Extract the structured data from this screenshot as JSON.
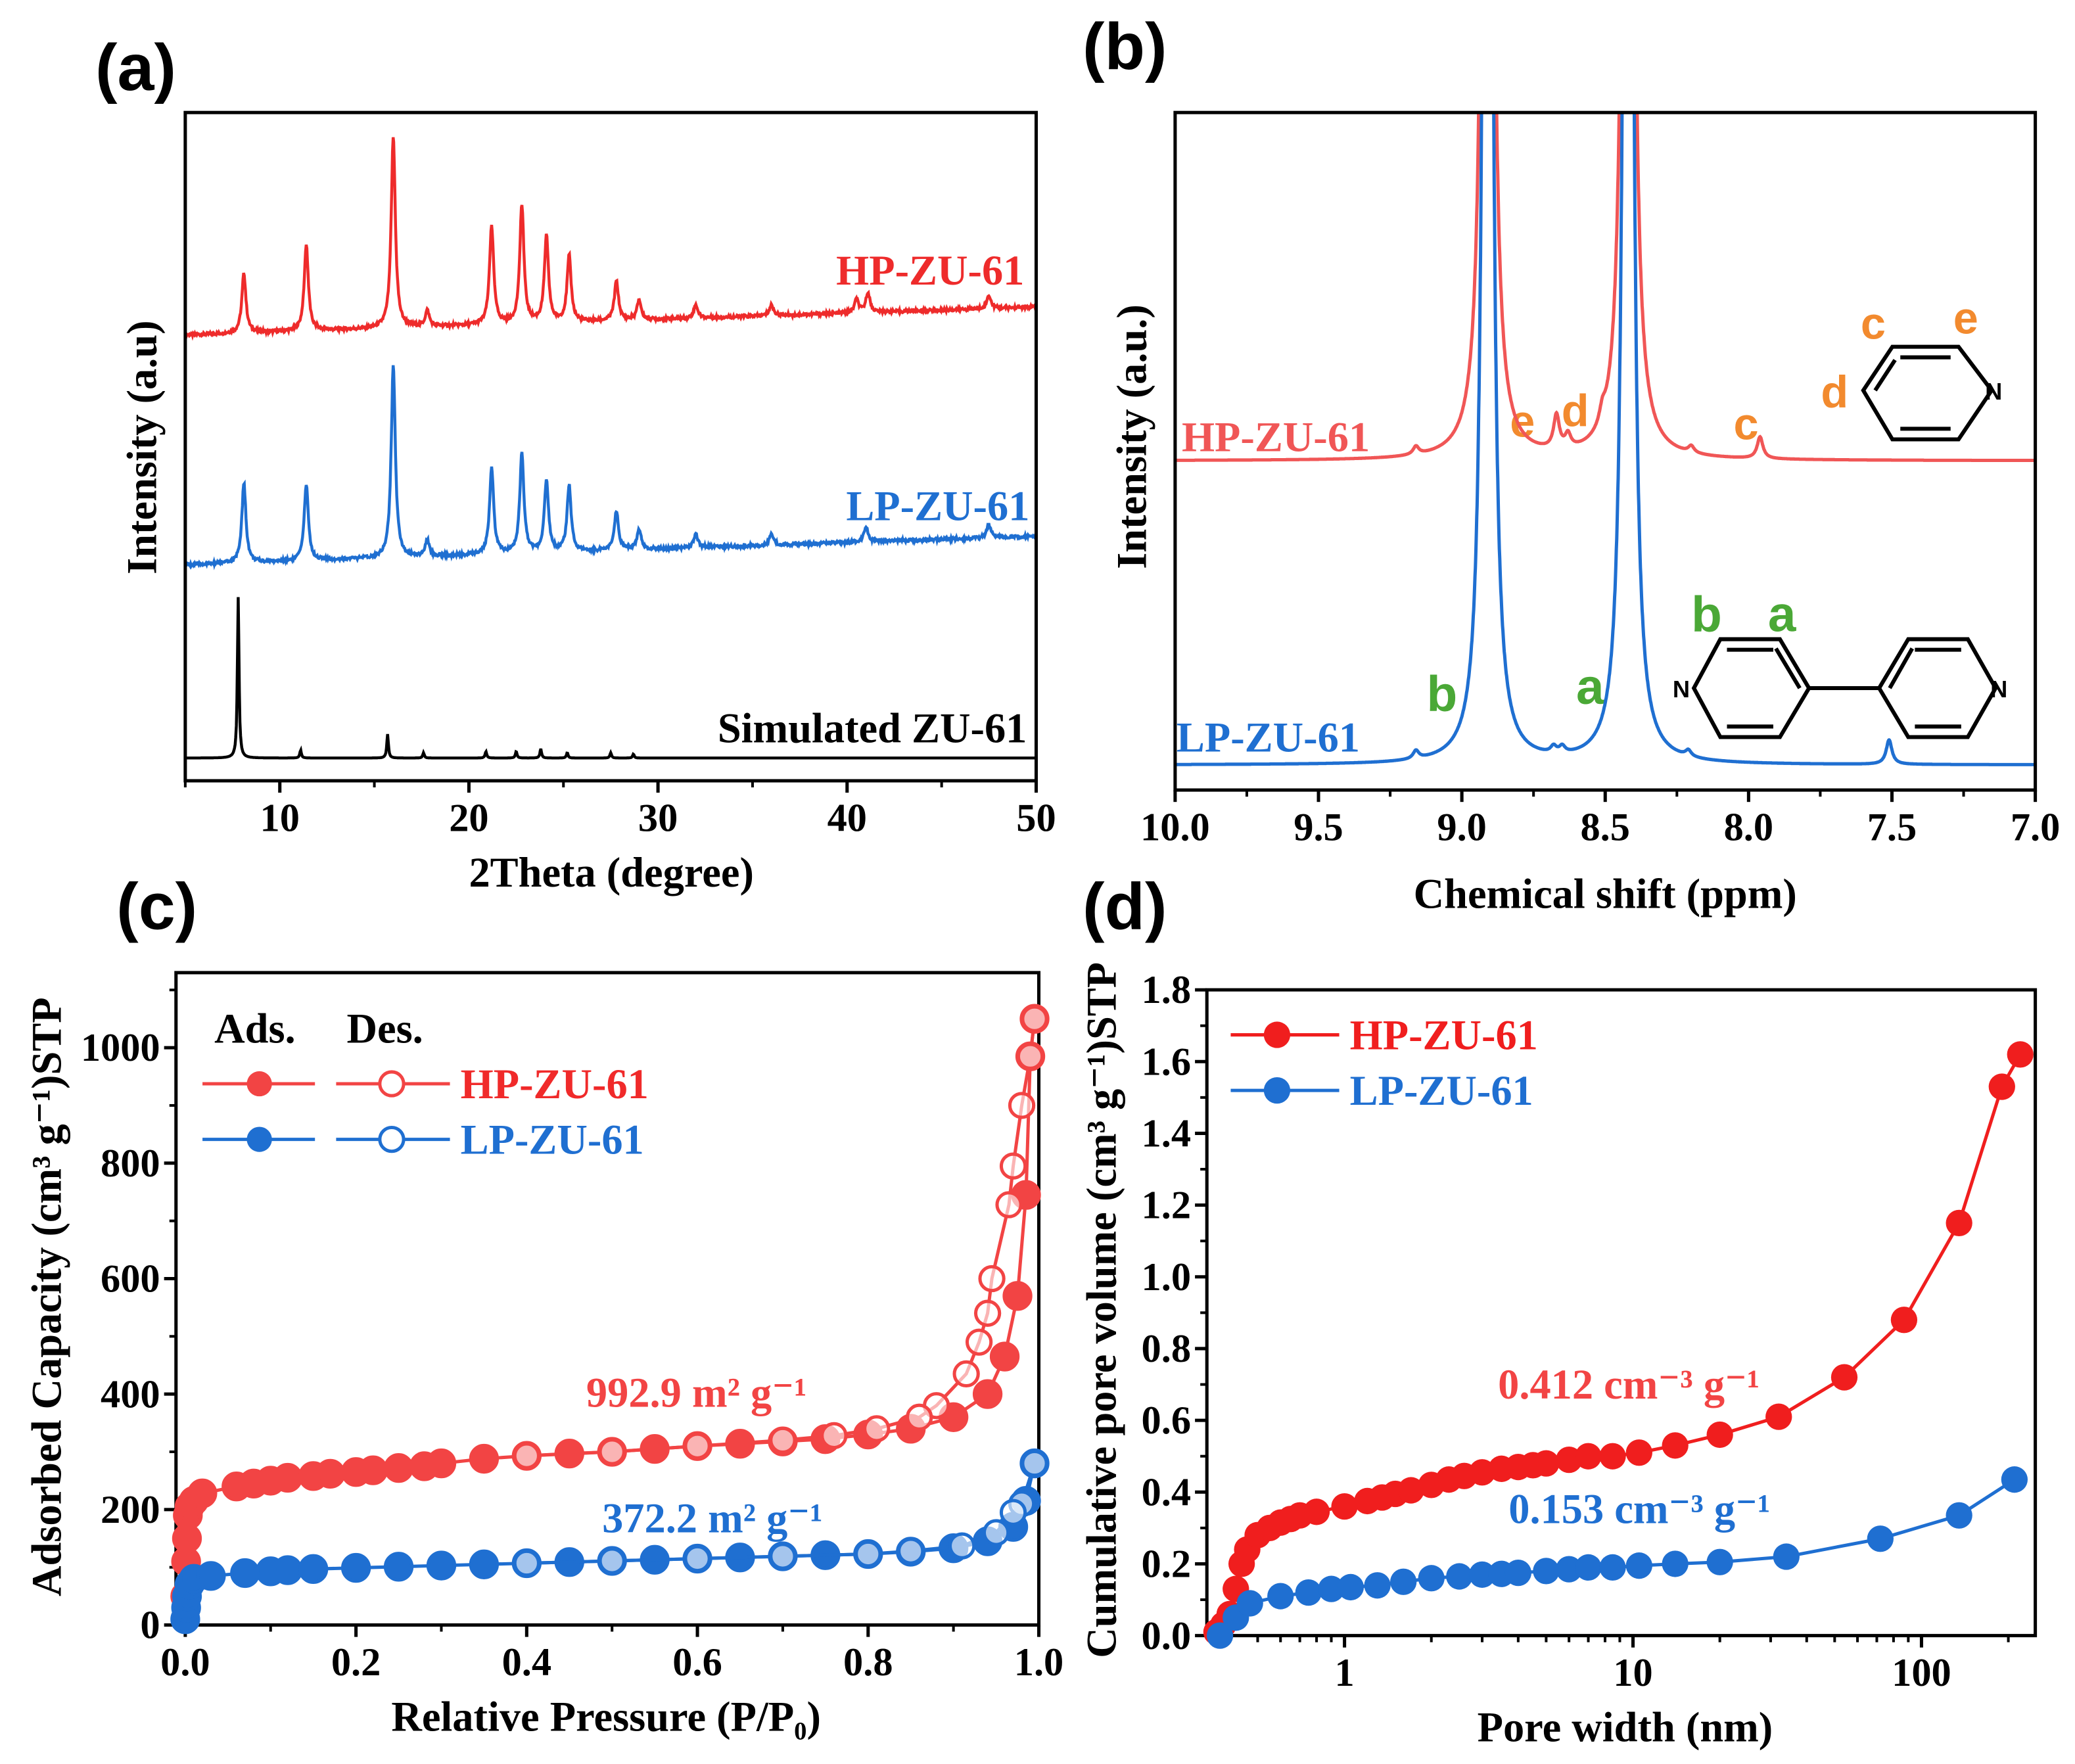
{
  "colors": {
    "hp": "#ee2b2b",
    "lp": "#1f6fd1",
    "hp_nmr": "#f05656",
    "sim": "#000000",
    "orange": "#f28a2e",
    "green": "#4aa836"
  },
  "chart_data": [
    {
      "panel_label": "(a)",
      "type": "line",
      "title": "",
      "xlabel": "2Theta (degree)",
      "ylabel": "Intensity (a.u)",
      "xlim": [
        5,
        50
      ],
      "ylim": [
        0,
        100
      ],
      "xticks": [
        "10",
        "20",
        "30",
        "40",
        "50"
      ],
      "xtick_values": [
        10,
        20,
        30,
        40,
        50
      ],
      "grid": false,
      "series": [
        {
          "name": "HP-ZU-61",
          "color": "#ee2b2b",
          "baseline": [
            66.7,
            70.9
          ],
          "width": 0.13,
          "noise": 0.45,
          "peaks": [
            [
              8.1,
              8.9
            ],
            [
              11.4,
              12.9
            ],
            [
              16.0,
              28.7
            ],
            [
              17.8,
              2.4
            ],
            [
              21.2,
              14.9
            ],
            [
              22.8,
              17.8
            ],
            [
              24.1,
              12.9
            ],
            [
              25.3,
              9.9
            ],
            [
              27.8,
              5.9
            ],
            [
              29.0,
              3.0
            ],
            [
              32.0,
              2.0
            ],
            [
              36.0,
              1.6
            ],
            [
              40.5,
              2.0
            ],
            [
              41.1,
              3.0
            ],
            [
              47.5,
              2.0
            ]
          ]
        },
        {
          "name": "LP-ZU-61",
          "color": "#1f6fd1",
          "baseline": [
            32.3,
            36.6
          ],
          "width": 0.13,
          "noise": 0.45,
          "peaks": [
            [
              8.1,
              11.9
            ],
            [
              11.4,
              11.5
            ],
            [
              16.0,
              28.7
            ],
            [
              17.8,
              2.4
            ],
            [
              21.2,
              12.9
            ],
            [
              22.8,
              14.9
            ],
            [
              24.1,
              10.9
            ],
            [
              25.3,
              9.9
            ],
            [
              27.8,
              5.9
            ],
            [
              29.0,
              3.0
            ],
            [
              32.0,
              2.0
            ],
            [
              36.0,
              1.6
            ],
            [
              41.0,
              2.4
            ],
            [
              47.5,
              2.0
            ]
          ]
        },
        {
          "name": "Simulated ZU-61",
          "color": "#000000",
          "baseline": [
            3.4,
            3.4
          ],
          "width": 0.05,
          "noise": 0,
          "peaks": [
            [
              7.8,
              24.2
            ],
            [
              11.1,
              1.2
            ],
            [
              15.7,
              3.6
            ],
            [
              17.6,
              0.8
            ],
            [
              20.9,
              1.0
            ],
            [
              22.5,
              1.0
            ],
            [
              23.8,
              1.4
            ],
            [
              25.2,
              0.8
            ],
            [
              27.5,
              0.8
            ],
            [
              28.7,
              0.6
            ]
          ]
        }
      ]
    },
    {
      "panel_label": "(b)",
      "type": "line",
      "title": "",
      "xlabel": "Chemical shift (ppm)",
      "ylabel": "Intensity (a.u.)",
      "xlim": [
        10.0,
        7.0
      ],
      "ylim": [
        0,
        100
      ],
      "xticks": [
        "10.0",
        "9.5",
        "9.0",
        "8.5",
        "8.0",
        "7.5",
        "7.0"
      ],
      "xtick_values": [
        10.0,
        9.5,
        9.0,
        8.5,
        8.0,
        7.5,
        7.0
      ],
      "grid": false,
      "series": [
        {
          "name": "HP-ZU-61",
          "color": "#f05656",
          "baseline": 48.6,
          "width": 0.012,
          "peaks": [
            [
              9.16,
              1.2
            ],
            [
              8.91,
              400
            ],
            [
              8.67,
              5
            ],
            [
              8.63,
              2
            ],
            [
              8.51,
              2
            ],
            [
              8.42,
              400
            ],
            [
              8.2,
              1.0
            ],
            [
              7.96,
              3.2
            ]
          ]
        },
        {
          "name": "LP-ZU-61",
          "color": "#1f6fd1",
          "baseline": 3.7,
          "width": 0.012,
          "peaks": [
            [
              9.16,
              1.2
            ],
            [
              8.91,
              400
            ],
            [
              8.68,
              1.0
            ],
            [
              8.65,
              1.0
            ],
            [
              8.42,
              400
            ],
            [
              8.21,
              0.9
            ],
            [
              7.51,
              3.6
            ]
          ]
        }
      ],
      "annotations": {
        "hp_e": "e",
        "hp_d": "d",
        "hp_c": "c",
        "lp_b": "b",
        "lp_a": "a",
        "pyridine": {
          "c": "c",
          "e": "e",
          "d": "d",
          "n": "N"
        },
        "bipyridine": {
          "b": "b",
          "a": "a",
          "n": "N"
        }
      }
    },
    {
      "panel_label": "(c)",
      "type": "scatter",
      "title": "",
      "xlabel": "Relative Pressure (P/P₀)",
      "ylabel": "Adsorbed Capacity (cm³ g⁻¹)STP",
      "xlim": [
        -0.011,
        1.0
      ],
      "ylim": [
        0,
        1130
      ],
      "xticks": [
        "0.0",
        "0.2",
        "0.4",
        "0.6",
        "0.8",
        "1.0"
      ],
      "xtick_values": [
        0,
        0.2,
        0.4,
        0.6,
        0.8,
        1.0
      ],
      "yticks": [
        "0",
        "200",
        "400",
        "600",
        "800",
        "1000"
      ],
      "ytick_values": [
        0,
        200,
        400,
        600,
        800,
        1000
      ],
      "legend": {
        "position": "top-left",
        "ads": "Ads.",
        "des": "Des.",
        "hp": "HP-ZU-61",
        "lp": "LP-ZU-61"
      },
      "annotations": {
        "hp_bet": "992.9 m² g⁻¹",
        "lp_bet": "372.2 m² g⁻¹"
      },
      "series": [
        {
          "name": "HP-ZU-61 Ads.",
          "color": "#f24444",
          "filled": true,
          "x": [
            0,
            0.001,
            0.002,
            0.003,
            0.005,
            0.01,
            0.02,
            0.06,
            0.08,
            0.1,
            0.12,
            0.15,
            0.17,
            0.2,
            0.22,
            0.25,
            0.28,
            0.3,
            0.35,
            0.4,
            0.45,
            0.5,
            0.55,
            0.6,
            0.65,
            0.7,
            0.75,
            0.8,
            0.85,
            0.9,
            0.94,
            0.96,
            0.975,
            0.985,
            0.99,
            0.995
          ],
          "y": [
            50,
            110,
            150,
            190,
            205,
            215,
            228,
            240,
            245,
            250,
            255,
            258,
            262,
            265,
            268,
            272,
            275,
            280,
            288,
            293,
            297,
            300,
            305,
            310,
            314,
            318,
            322,
            330,
            340,
            360,
            400,
            465,
            570,
            745,
            985,
            1050
          ]
        },
        {
          "name": "HP-ZU-61 Des.",
          "color": "#f24444",
          "filled": false,
          "x": [
            0.995,
            0.99,
            0.98,
            0.97,
            0.965,
            0.945,
            0.94,
            0.93,
            0.915,
            0.88,
            0.86,
            0.81,
            0.76,
            0.7,
            0.6,
            0.5,
            0.4
          ],
          "y": [
            1050,
            985,
            900,
            795,
            728,
            600,
            540,
            490,
            435,
            380,
            360,
            340,
            328,
            320,
            310,
            300,
            293
          ]
        },
        {
          "name": "LP-ZU-61 Ads.",
          "color": "#1f6fd1",
          "filled": true,
          "x": [
            0,
            0.001,
            0.002,
            0.005,
            0.01,
            0.03,
            0.07,
            0.1,
            0.12,
            0.15,
            0.2,
            0.25,
            0.3,
            0.35,
            0.4,
            0.45,
            0.5,
            0.55,
            0.6,
            0.65,
            0.7,
            0.75,
            0.8,
            0.85,
            0.9,
            0.94,
            0.97,
            0.985,
            0.995
          ],
          "y": [
            10,
            30,
            50,
            70,
            80,
            85,
            90,
            93,
            95,
            97,
            99,
            101,
            103,
            105,
            107,
            109,
            111,
            113,
            115,
            117,
            119,
            121,
            123,
            127,
            133,
            145,
            170,
            215,
            280
          ]
        },
        {
          "name": "LP-ZU-61 Des.",
          "color": "#1f6fd1",
          "filled": false,
          "x": [
            0.995,
            0.98,
            0.97,
            0.95,
            0.91,
            0.85,
            0.8,
            0.7,
            0.6,
            0.5,
            0.4
          ],
          "y": [
            280,
            210,
            195,
            160,
            137,
            128,
            123,
            119,
            115,
            111,
            107
          ]
        }
      ]
    },
    {
      "panel_label": "(d)",
      "type": "line",
      "title": "",
      "xlabel": "Pore width (nm)",
      "ylabel": "Cumulative pore volume (cm³ g⁻¹)STP",
      "xscale": "log",
      "xlim": [
        0.333,
        248
      ],
      "ylim": [
        0,
        1.8
      ],
      "xticks": [
        "1",
        "10",
        "100"
      ],
      "xtick_values": [
        1,
        10,
        100
      ],
      "yticks": [
        "0.0",
        "0.2",
        "0.4",
        "0.6",
        "0.8",
        "1.0",
        "1.2",
        "1.4",
        "1.6",
        "1.8"
      ],
      "ytick_values": [
        0,
        0.2,
        0.4,
        0.6,
        0.8,
        1.0,
        1.2,
        1.4,
        1.6,
        1.8
      ],
      "legend": {
        "position": "top-left",
        "hp": "HP-ZU-61",
        "lp": "LP-ZU-61"
      },
      "annotations": {
        "hp_vol": "0.412 cm⁻³ g⁻¹",
        "lp_vol": "0.153 cm⁻³ g⁻¹"
      },
      "series": [
        {
          "name": "HP-ZU-61",
          "color": "#f01e1e",
          "x": [
            0.36,
            0.38,
            0.4,
            0.42,
            0.44,
            0.46,
            0.5,
            0.55,
            0.6,
            0.65,
            0.7,
            0.8,
            1.0,
            1.2,
            1.35,
            1.5,
            1.7,
            2.0,
            2.3,
            2.6,
            3.0,
            3.5,
            4.0,
            4.5,
            5.0,
            6.0,
            7.0,
            8.5,
            10.5,
            14,
            20,
            32,
            54,
            87,
            135,
            190,
            220
          ],
          "y": [
            0.01,
            0.03,
            0.06,
            0.13,
            0.2,
            0.24,
            0.28,
            0.3,
            0.315,
            0.325,
            0.335,
            0.345,
            0.36,
            0.375,
            0.385,
            0.395,
            0.405,
            0.42,
            0.435,
            0.445,
            0.455,
            0.465,
            0.47,
            0.475,
            0.48,
            0.49,
            0.5,
            0.5,
            0.51,
            0.53,
            0.56,
            0.61,
            0.72,
            0.88,
            1.15,
            1.53,
            1.62
          ]
        },
        {
          "name": "LP-ZU-61",
          "color": "#1f6fd1",
          "x": [
            0.37,
            0.42,
            0.47,
            0.6,
            0.75,
            0.9,
            1.05,
            1.3,
            1.6,
            2.0,
            2.5,
            3.0,
            3.5,
            4.0,
            5.0,
            6.0,
            7.0,
            8.5,
            10.5,
            14,
            20,
            34,
            72,
            135,
            210
          ],
          "y": [
            0.0,
            0.05,
            0.09,
            0.11,
            0.12,
            0.13,
            0.135,
            0.14,
            0.15,
            0.16,
            0.165,
            0.17,
            0.172,
            0.175,
            0.18,
            0.185,
            0.19,
            0.19,
            0.195,
            0.2,
            0.205,
            0.22,
            0.27,
            0.335,
            0.435
          ]
        }
      ]
    }
  ]
}
